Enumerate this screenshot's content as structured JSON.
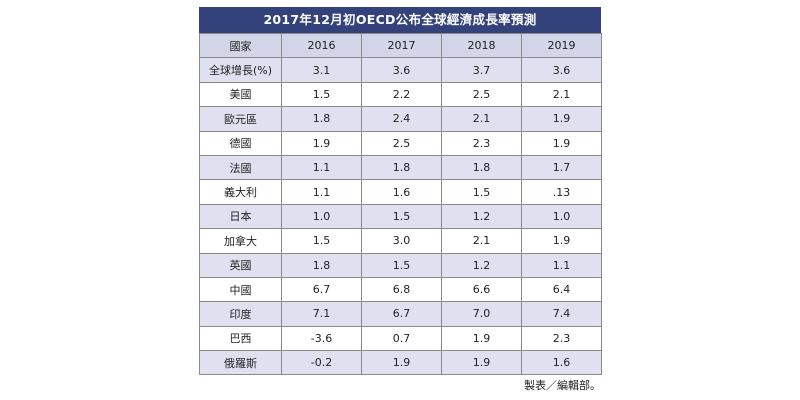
{
  "table": {
    "title": "2017年12月初OECD公布全球經濟成長率預測",
    "headers": [
      "國家",
      "2016",
      "2017",
      "2018",
      "2019"
    ],
    "rows": [
      [
        "全球增長(%)",
        "3.1",
        "3.6",
        "3.7",
        "3.6"
      ],
      [
        "美國",
        "1.5",
        "2.2",
        "2.5",
        "2.1"
      ],
      [
        "歐元區",
        "1.8",
        "2.4",
        "2.1",
        "1.9"
      ],
      [
        "德國",
        "1.9",
        "2.5",
        "2.3",
        "1.9"
      ],
      [
        "法國",
        "1.1",
        "1.8",
        "1.8",
        "1.7"
      ],
      [
        "義大利",
        "1.1",
        "1.6",
        "1.5",
        ".13"
      ],
      [
        "日本",
        "1.0",
        "1.5",
        "1.2",
        "1.0"
      ],
      [
        "加拿大",
        "1.5",
        "3.0",
        "2.1",
        "1.9"
      ],
      [
        "英國",
        "1.8",
        "1.5",
        "1.2",
        "1.1"
      ],
      [
        "中國",
        "6.7",
        "6.8",
        "6.6",
        "6.4"
      ],
      [
        "印度",
        "7.1",
        "6.7",
        "7.0",
        "7.4"
      ],
      [
        "巴西",
        "-3.6",
        "0.7",
        "1.9",
        "2.3"
      ],
      [
        "俄羅斯",
        "-0.2",
        "1.9",
        "1.9",
        "1.6"
      ]
    ],
    "source_note": "製表／編輯部。"
  },
  "colors": {
    "title_bg": "#34427c",
    "header_bg": "#d3d5e8",
    "alt_row_bg": "#dfe1f0"
  }
}
